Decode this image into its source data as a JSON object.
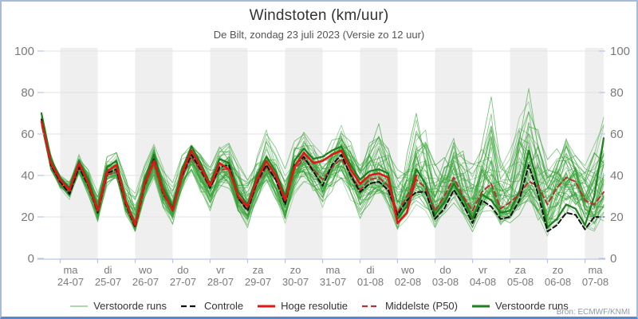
{
  "header": {
    "title": "Windstoten (km/uur)",
    "subtitle": "De Bilt, zondag 23 juli 2023 (Versie zo 12 uur)"
  },
  "attribution": "Bron: ECMWF/KNMI",
  "legend": {
    "items": [
      {
        "label": "Verstoorde runs",
        "style": "thin-green"
      },
      {
        "label": "Controle",
        "style": "black-dashed"
      },
      {
        "label": "Hoge resolutie",
        "style": "red-solid"
      },
      {
        "label": "Middelste (P50)",
        "style": "darkred-dashed"
      },
      {
        "label": "Verstoorde runs",
        "style": "bold-green"
      }
    ]
  },
  "chart_data": {
    "type": "line",
    "title": "Windstoten (km/uur)",
    "subtitle": "De Bilt, zondag 23 juli 2023 (Versie zo 12 uur)",
    "ylabel": "km/uur",
    "ylim": [
      0,
      100
    ],
    "yticks": [
      0,
      20,
      40,
      60,
      80,
      100
    ],
    "x_start": "2023-07-23 12:00",
    "x_step_hours": 6,
    "xticklabels": [
      {
        "day": "ma",
        "date": "24-07"
      },
      {
        "day": "di",
        "date": "25-07"
      },
      {
        "day": "wo",
        "date": "26-07"
      },
      {
        "day": "do",
        "date": "27-07"
      },
      {
        "day": "vr",
        "date": "28-07"
      },
      {
        "day": "za",
        "date": "29-07"
      },
      {
        "day": "zo",
        "date": "30-07"
      },
      {
        "day": "ma",
        "date": "31-07"
      },
      {
        "day": "di",
        "date": "01-08"
      },
      {
        "day": "wo",
        "date": "02-08"
      },
      {
        "day": "do",
        "date": "03-08"
      },
      {
        "day": "vr",
        "date": "04-08"
      },
      {
        "day": "za",
        "date": "05-08"
      },
      {
        "day": "zo",
        "date": "06-08"
      },
      {
        "day": "ma",
        "date": "07-08"
      }
    ],
    "series": [
      {
        "name": "Hoge resolutie",
        "color": "#e11717",
        "dash": null,
        "width": 2.6,
        "values": [
          66,
          46,
          38,
          33,
          46,
          36,
          23,
          42,
          45,
          27,
          16,
          36,
          47,
          32,
          23,
          41,
          52,
          44,
          35,
          46,
          43,
          30,
          25,
          38,
          47,
          40,
          28,
          44,
          51,
          46,
          47,
          50,
          52,
          43,
          36,
          40,
          41,
          39,
          17,
          22,
          40
        ]
      },
      {
        "name": "Controle",
        "color": "#111111",
        "dash": "5.5 3.5",
        "width": 2,
        "values": [
          67,
          45,
          37,
          31,
          44,
          35,
          22,
          41,
          43,
          26,
          15,
          35,
          48,
          31,
          24,
          40,
          50,
          43,
          34,
          44,
          45,
          29,
          23,
          37,
          45,
          38,
          26,
          45,
          49,
          42,
          35,
          45,
          50,
          40,
          32,
          36,
          37,
          33,
          21,
          28,
          32,
          32,
          19,
          24,
          33,
          26,
          17,
          28,
          25,
          19,
          20,
          28,
          45,
          31,
          13,
          16,
          22,
          21,
          14,
          20,
          20
        ]
      },
      {
        "name": "Middelste (P50)",
        "color": "#b23434",
        "dash": "6.5 4",
        "width": 2,
        "values": [
          66,
          45,
          36,
          32,
          44,
          36,
          22,
          40,
          42,
          26,
          16,
          35,
          46,
          31,
          23,
          39,
          49,
          42,
          34,
          43,
          43,
          29,
          24,
          36,
          44,
          38,
          27,
          43,
          48,
          43,
          38,
          44,
          48,
          41,
          33,
          38,
          39,
          35,
          22,
          30,
          38,
          34,
          23,
          30,
          39,
          30,
          23,
          32,
          36,
          24,
          27,
          31,
          37,
          35,
          26,
          34,
          39,
          37,
          28,
          26,
          32
        ]
      },
      {
        "name": "Verstoorde runs (uitgelicht)",
        "color": "#1d7f1d",
        "dash": null,
        "width": 2.2,
        "values": [
          70,
          48,
          39,
          34,
          47,
          38,
          24,
          44,
          47,
          28,
          17,
          38,
          50,
          34,
          25,
          43,
          54,
          46,
          36,
          48,
          46,
          32,
          26,
          40,
          49,
          42,
          30,
          47,
          53,
          48,
          49,
          52,
          54,
          45,
          38,
          42,
          43,
          41,
          19,
          25,
          43,
          36,
          21,
          27,
          36,
          29,
          19,
          31,
          28,
          22,
          23,
          32,
          52,
          36,
          15,
          19,
          26,
          24,
          16,
          30,
          58
        ]
      }
    ],
    "ensemble": {
      "name": "Verstoorde runs",
      "color": "#33a033",
      "count": 49,
      "seed": 12345,
      "envelope_min": [
        63,
        42,
        33,
        28,
        40,
        30,
        17,
        33,
        36,
        20,
        12,
        28,
        38,
        24,
        15,
        30,
        40,
        30,
        22,
        33,
        33,
        20,
        14,
        27,
        33,
        26,
        16,
        30,
        36,
        30,
        22,
        30,
        35,
        25,
        18,
        25,
        28,
        22,
        12,
        18,
        25,
        22,
        14,
        20,
        25,
        20,
        12,
        20,
        22,
        15,
        15,
        20,
        25,
        15,
        8,
        12,
        15,
        12,
        10,
        12,
        14
      ],
      "envelope_max": [
        70,
        52,
        42,
        40,
        52,
        45,
        33,
        50,
        52,
        40,
        33,
        46,
        56,
        45,
        38,
        52,
        60,
        52,
        45,
        55,
        57,
        48,
        40,
        52,
        62,
        55,
        45,
        58,
        64,
        58,
        55,
        62,
        66,
        58,
        50,
        60,
        65,
        55,
        45,
        55,
        70,
        65,
        50,
        55,
        60,
        55,
        48,
        55,
        78,
        50,
        55,
        75,
        82,
        65,
        50,
        55,
        62,
        55,
        50,
        58,
        68
      ],
      "spikes": [
        {
          "member": 5,
          "index": 48
        },
        {
          "member": 8,
          "index": 52
        },
        {
          "member": 11,
          "index": 40
        },
        {
          "member": 14,
          "index": 60
        },
        {
          "member": 17,
          "index": 24
        },
        {
          "member": 20,
          "index": 36
        }
      ]
    },
    "layout": {
      "band_color": "#efefef",
      "gridline_color": "#e3e3e3",
      "axis_color": "#b6c6e2",
      "tick_label_color": "#7a7a7a",
      "grid": true,
      "legend_position": "bottom"
    }
  }
}
